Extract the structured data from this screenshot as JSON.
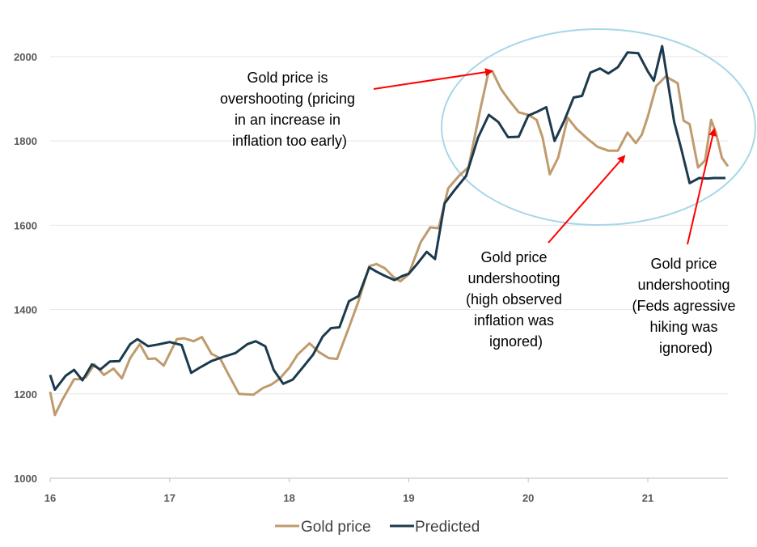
{
  "chart_data": {
    "type": "line",
    "title": "",
    "xlabel": "",
    "ylabel": "",
    "xlim": [
      16,
      21.67
    ],
    "ylim": [
      1000,
      2000
    ],
    "y_ticks": [
      1000,
      1200,
      1400,
      1600,
      1800,
      2000
    ],
    "x_ticks": [
      16,
      17,
      18,
      19,
      20,
      21
    ],
    "x_tick_labels": [
      "16",
      "17",
      "18",
      "19",
      "20",
      "21"
    ],
    "grid": true,
    "legend_position": "bottom-center",
    "series": [
      {
        "name": "Gold price",
        "color": "#bf9b6e",
        "x": [
          16.0,
          16.04,
          16.1,
          16.2,
          16.25,
          16.3,
          16.37,
          16.45,
          16.53,
          16.6,
          16.67,
          16.75,
          16.82,
          16.88,
          16.95,
          17.06,
          17.12,
          17.2,
          17.27,
          17.35,
          17.42,
          17.5,
          17.58,
          17.7,
          17.78,
          17.85,
          17.92,
          18.0,
          18.07,
          18.17,
          18.25,
          18.33,
          18.4,
          18.5,
          18.58,
          18.67,
          18.73,
          18.8,
          18.87,
          18.93,
          19.0,
          19.1,
          19.18,
          19.25,
          19.33,
          19.42,
          19.5,
          19.6,
          19.67,
          19.7,
          19.77,
          19.83,
          19.92,
          20.0,
          20.07,
          20.12,
          20.18,
          20.25,
          20.33,
          20.4,
          20.5,
          20.58,
          20.67,
          20.75,
          20.83,
          20.9,
          20.95,
          21.0,
          21.07,
          21.15,
          21.25,
          21.3,
          21.35,
          21.42,
          21.48,
          21.53,
          21.57,
          21.62,
          21.67
        ],
        "values": [
          1205,
          1150,
          1185,
          1235,
          1235,
          1240,
          1270,
          1245,
          1260,
          1237,
          1285,
          1318,
          1283,
          1284,
          1267,
          1330,
          1332,
          1325,
          1335,
          1295,
          1285,
          1242,
          1200,
          1198,
          1214,
          1222,
          1236,
          1262,
          1293,
          1320,
          1299,
          1285,
          1283,
          1358,
          1420,
          1503,
          1508,
          1498,
          1478,
          1467,
          1484,
          1560,
          1595,
          1593,
          1688,
          1717,
          1738,
          1877,
          1967,
          1965,
          1924,
          1900,
          1868,
          1862,
          1850,
          1808,
          1721,
          1760,
          1855,
          1830,
          1804,
          1786,
          1777,
          1777,
          1820,
          1795,
          1815,
          1858,
          1930,
          1953,
          1937,
          1848,
          1840,
          1737,
          1754,
          1850,
          1820,
          1760,
          1740
        ]
      },
      {
        "name": "Predicted",
        "color": "#1c3a4d",
        "x": [
          16.0,
          16.04,
          16.13,
          16.2,
          16.27,
          16.35,
          16.42,
          16.5,
          16.58,
          16.67,
          16.73,
          16.82,
          16.9,
          17.0,
          17.1,
          17.18,
          17.25,
          17.35,
          17.45,
          17.55,
          17.65,
          17.72,
          17.8,
          17.87,
          17.95,
          18.03,
          18.12,
          18.2,
          18.28,
          18.35,
          18.42,
          18.5,
          18.58,
          18.67,
          18.73,
          18.8,
          18.88,
          18.95,
          19.0,
          19.07,
          19.15,
          19.22,
          19.3,
          19.38,
          19.48,
          19.58,
          19.67,
          19.75,
          19.83,
          19.92,
          20.0,
          20.08,
          20.15,
          20.22,
          20.3,
          20.38,
          20.45,
          20.52,
          20.6,
          20.67,
          20.75,
          20.83,
          20.92,
          21.0,
          21.05,
          21.12,
          21.22,
          21.28,
          21.35,
          21.43,
          21.5,
          21.55,
          21.6,
          21.65
        ],
        "values": [
          1245,
          1210,
          1243,
          1257,
          1232,
          1270,
          1258,
          1277,
          1278,
          1318,
          1330,
          1313,
          1317,
          1323,
          1316,
          1250,
          1262,
          1278,
          1288,
          1297,
          1318,
          1325,
          1313,
          1257,
          1224,
          1234,
          1265,
          1293,
          1336,
          1356,
          1358,
          1420,
          1432,
          1500,
          1490,
          1480,
          1470,
          1480,
          1485,
          1508,
          1537,
          1520,
          1652,
          1682,
          1717,
          1808,
          1862,
          1845,
          1809,
          1810,
          1860,
          1870,
          1880,
          1800,
          1847,
          1903,
          1907,
          1962,
          1972,
          1960,
          1975,
          2010,
          2008,
          1965,
          1943,
          2025,
          1846,
          1781,
          1700,
          1712,
          1711,
          1712,
          1712,
          1712
        ]
      }
    ],
    "annotations": [
      {
        "lines": [
          "Gold price is",
          "overshooting (pricing",
          "in an increase in",
          "inflation too early)"
        ],
        "points_to": [
          19.67,
          1967
        ]
      },
      {
        "lines": [
          "Gold price",
          "undershooting",
          "(high observed",
          "inflation was",
          "ignored)"
        ],
        "points_to": [
          20.83,
          1777
        ]
      },
      {
        "lines": [
          "Gold price",
          "undershooting",
          "(Feds agressive",
          "hiking was",
          "ignored)"
        ],
        "points_to": [
          21.55,
          1830
        ]
      }
    ],
    "highlight": {
      "shape": "ellipse",
      "color": "#a7d7e8"
    }
  }
}
